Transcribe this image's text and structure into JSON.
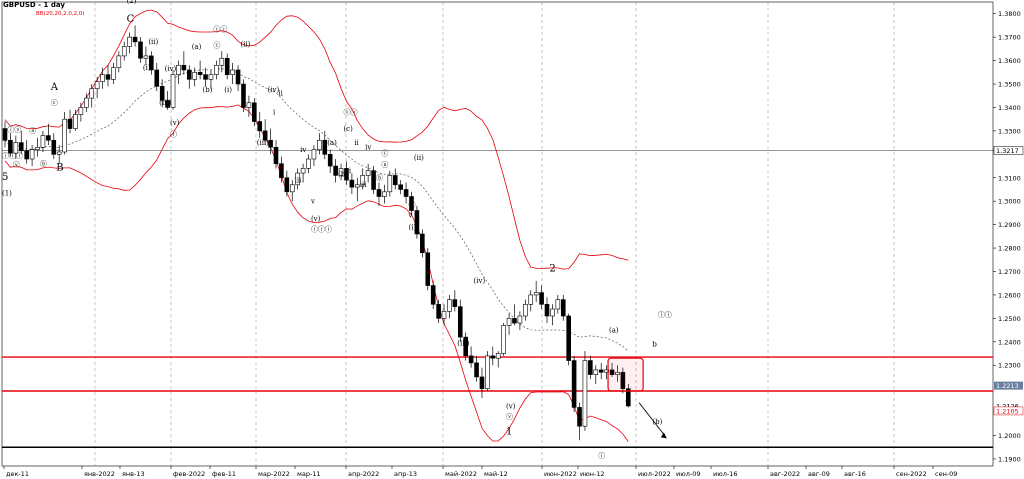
{
  "header": {
    "symbol_title": "GBPUSD - 1 day",
    "indicator": "BB(20,20,2.0,2,0)"
  },
  "colors": {
    "bull_candle": "#ffffff",
    "bear_candle": "#000000",
    "bollinger": "#e8000b",
    "ma": "#555555",
    "level_lines": "#e8000b",
    "support_line": "#000000",
    "price_tag": "#6a7fa0",
    "price_tag2": "#e8000b",
    "grid": "#888888",
    "wave_labels": "#000000"
  },
  "chart_data": {
    "type": "candlestick",
    "title": "GBPUSD - 1 day",
    "indicator": "BB(20,20,2.0,2,0)",
    "ylim": [
      1.187,
      1.385
    ],
    "y_ticks": [
      "1.3800",
      "1.3700",
      "1.3600",
      "1.3500",
      "1.3400",
      "1.3300",
      "1.3217",
      "1.3100",
      "1.3000",
      "1.2900",
      "1.2800",
      "1.2700",
      "1.2600",
      "1.2500",
      "1.2400",
      "1.2300",
      "1.2213",
      "1.2126",
      "1.2105",
      "1.2000",
      "1.1900"
    ],
    "x_ticks": [
      "дек-11",
      "янв-2022",
      "янв-13",
      "фев-2022",
      "фев-11",
      "мар-2022",
      "мар-11",
      "апр-2022",
      "апр-13",
      "май-2022",
      "май-12",
      "июн-2022",
      "июн-12",
      "июл-2022",
      "июл-09",
      "июл-16",
      "авг-2022",
      "авг-09",
      "авг-16",
      "сен-2022",
      "сен-09"
    ],
    "price_tags": [
      {
        "label": "1.2213",
        "value": 1.2213,
        "style": "current"
      },
      {
        "label": "1.2126",
        "value": 1.2126,
        "style": "plain"
      },
      {
        "label": "1.2105",
        "value": 1.2105,
        "style": "red"
      }
    ],
    "horizontal_levels": [
      {
        "value": 1.3217,
        "color": "#555555",
        "style": "thin"
      },
      {
        "value": 1.2335,
        "color": "#e8000b",
        "style": "thick"
      },
      {
        "value": 1.219,
        "color": "#e8000b",
        "style": "thick"
      },
      {
        "value": 1.195,
        "color": "#000000",
        "style": "thick"
      }
    ],
    "vertical_dashed_dates": [
      "янв-2022",
      "фев-2022",
      "мар-2022",
      "апр-2022",
      "май-2022",
      "июн-2022",
      "июл-2022",
      "авг-2022",
      "сен-2022"
    ],
    "candles": [
      [
        1.331,
        1.334,
        1.323,
        1.326
      ],
      [
        1.326,
        1.329,
        1.319,
        1.3205
      ],
      [
        1.3205,
        1.328,
        1.318,
        1.325
      ],
      [
        1.325,
        1.33,
        1.32,
        1.3215
      ],
      [
        1.3215,
        1.326,
        1.316,
        1.318
      ],
      [
        1.318,
        1.324,
        1.315,
        1.322
      ],
      [
        1.322,
        1.327,
        1.319,
        1.323
      ],
      [
        1.323,
        1.33,
        1.321,
        1.328
      ],
      [
        1.328,
        1.333,
        1.324,
        1.326
      ],
      [
        1.326,
        1.329,
        1.318,
        1.32
      ],
      [
        1.32,
        1.324,
        1.316,
        1.321
      ],
      [
        1.321,
        1.338,
        1.32,
        1.335
      ],
      [
        1.335,
        1.339,
        1.329,
        1.331
      ],
      [
        1.331,
        1.339,
        1.33,
        1.337
      ],
      [
        1.337,
        1.342,
        1.334,
        1.34
      ],
      [
        1.34,
        1.346,
        1.338,
        1.344
      ],
      [
        1.344,
        1.35,
        1.34,
        1.348
      ],
      [
        1.348,
        1.353,
        1.344,
        1.351
      ],
      [
        1.351,
        1.357,
        1.348,
        1.354
      ],
      [
        1.354,
        1.358,
        1.349,
        1.352
      ],
      [
        1.352,
        1.359,
        1.35,
        1.357
      ],
      [
        1.357,
        1.364,
        1.355,
        1.362
      ],
      [
        1.362,
        1.368,
        1.36,
        1.366
      ],
      [
        1.366,
        1.372,
        1.363,
        1.37
      ],
      [
        1.37,
        1.375,
        1.366,
        1.368
      ],
      [
        1.368,
        1.37,
        1.359,
        1.361
      ],
      [
        1.361,
        1.366,
        1.358,
        1.362
      ],
      [
        1.362,
        1.364,
        1.354,
        1.356
      ],
      [
        1.356,
        1.359,
        1.347,
        1.349
      ],
      [
        1.349,
        1.352,
        1.34,
        1.343
      ],
      [
        1.343,
        1.347,
        1.339,
        1.34
      ],
      [
        1.34,
        1.356,
        1.339,
        1.354
      ],
      [
        1.354,
        1.36,
        1.35,
        1.358
      ],
      [
        1.358,
        1.364,
        1.354,
        1.356
      ],
      [
        1.356,
        1.358,
        1.348,
        1.352
      ],
      [
        1.352,
        1.357,
        1.349,
        1.355
      ],
      [
        1.355,
        1.36,
        1.352,
        1.354
      ],
      [
        1.354,
        1.357,
        1.349,
        1.352
      ],
      [
        1.352,
        1.356,
        1.348,
        1.354
      ],
      [
        1.354,
        1.36,
        1.352,
        1.358
      ],
      [
        1.358,
        1.364,
        1.355,
        1.361
      ],
      [
        1.361,
        1.363,
        1.352,
        1.354
      ],
      [
        1.354,
        1.359,
        1.35,
        1.356
      ],
      [
        1.356,
        1.358,
        1.347,
        1.35
      ],
      [
        1.35,
        1.352,
        1.338,
        1.34
      ],
      [
        1.34,
        1.345,
        1.336,
        1.342
      ],
      [
        1.342,
        1.344,
        1.332,
        1.334
      ],
      [
        1.334,
        1.338,
        1.327,
        1.33
      ],
      [
        1.33,
        1.335,
        1.324,
        1.326
      ],
      [
        1.326,
        1.331,
        1.32,
        1.323
      ],
      [
        1.323,
        1.326,
        1.314,
        1.316
      ],
      [
        1.316,
        1.319,
        1.308,
        1.31
      ],
      [
        1.31,
        1.313,
        1.302,
        1.304
      ],
      [
        1.304,
        1.309,
        1.3,
        1.307
      ],
      [
        1.307,
        1.314,
        1.305,
        1.312
      ],
      [
        1.312,
        1.316,
        1.308,
        1.314
      ],
      [
        1.314,
        1.32,
        1.312,
        1.318
      ],
      [
        1.318,
        1.324,
        1.315,
        1.322
      ],
      [
        1.322,
        1.329,
        1.32,
        1.326
      ],
      [
        1.326,
        1.33,
        1.318,
        1.32
      ],
      [
        1.32,
        1.322,
        1.312,
        1.315
      ],
      [
        1.315,
        1.318,
        1.308,
        1.311
      ],
      [
        1.311,
        1.316,
        1.309,
        1.314
      ],
      [
        1.314,
        1.317,
        1.307,
        1.309
      ],
      [
        1.309,
        1.312,
        1.303,
        1.306
      ],
      [
        1.306,
        1.31,
        1.3,
        1.307
      ],
      [
        1.307,
        1.314,
        1.305,
        1.311
      ],
      [
        1.311,
        1.316,
        1.308,
        1.313
      ],
      [
        1.313,
        1.315,
        1.303,
        1.305
      ],
      [
        1.305,
        1.308,
        1.298,
        1.302
      ],
      [
        1.302,
        1.307,
        1.299,
        1.304
      ],
      [
        1.304,
        1.313,
        1.302,
        1.311
      ],
      [
        1.311,
        1.314,
        1.305,
        1.307
      ],
      [
        1.307,
        1.309,
        1.303,
        1.305
      ],
      [
        1.305,
        1.308,
        1.299,
        1.302
      ],
      [
        1.302,
        1.304,
        1.294,
        1.296
      ],
      [
        1.296,
        1.298,
        1.284,
        1.286
      ],
      [
        1.286,
        1.288,
        1.276,
        1.278
      ],
      [
        1.278,
        1.28,
        1.262,
        1.264
      ],
      [
        1.264,
        1.266,
        1.254,
        1.256
      ],
      [
        1.256,
        1.258,
        1.248,
        1.25
      ],
      [
        1.25,
        1.256,
        1.247,
        1.253
      ],
      [
        1.253,
        1.26,
        1.25,
        1.258
      ],
      [
        1.258,
        1.262,
        1.253,
        1.255
      ],
      [
        1.255,
        1.258,
        1.24,
        1.242
      ],
      [
        1.242,
        1.244,
        1.232,
        1.234
      ],
      [
        1.234,
        1.238,
        1.229,
        1.231
      ],
      [
        1.231,
        1.234,
        1.223,
        1.225
      ],
      [
        1.225,
        1.229,
        1.216,
        1.22
      ],
      [
        1.22,
        1.236,
        1.219,
        1.234
      ],
      [
        1.234,
        1.238,
        1.23,
        1.233
      ],
      [
        1.233,
        1.236,
        1.229,
        1.235
      ],
      [
        1.235,
        1.248,
        1.234,
        1.247
      ],
      [
        1.247,
        1.252,
        1.243,
        1.25
      ],
      [
        1.25,
        1.256,
        1.247,
        1.248
      ],
      [
        1.248,
        1.253,
        1.245,
        1.251
      ],
      [
        1.251,
        1.258,
        1.249,
        1.256
      ],
      [
        1.256,
        1.262,
        1.253,
        1.26
      ],
      [
        1.26,
        1.266,
        1.257,
        1.261
      ],
      [
        1.261,
        1.264,
        1.254,
        1.256
      ],
      [
        1.256,
        1.259,
        1.248,
        1.251
      ],
      [
        1.251,
        1.256,
        1.247,
        1.254
      ],
      [
        1.254,
        1.26,
        1.252,
        1.258
      ],
      [
        1.258,
        1.26,
        1.249,
        1.251
      ],
      [
        1.251,
        1.252,
        1.23,
        1.232
      ],
      [
        1.232,
        1.234,
        1.21,
        1.212
      ],
      [
        1.212,
        1.214,
        1.198,
        1.204
      ],
      [
        1.204,
        1.236,
        1.202,
        1.232
      ],
      [
        1.232,
        1.234,
        1.224,
        1.226
      ],
      [
        1.226,
        1.23,
        1.222,
        1.228
      ],
      [
        1.228,
        1.231,
        1.224,
        1.227
      ],
      [
        1.227,
        1.23,
        1.224,
        1.228
      ],
      [
        1.228,
        1.231,
        1.225,
        1.226
      ],
      [
        1.226,
        1.23,
        1.223,
        1.227
      ],
      [
        1.227,
        1.229,
        1.218,
        1.22
      ],
      [
        1.22,
        1.222,
        1.212,
        1.2126
      ]
    ],
    "wave_labels": [
      {
        "text": "5",
        "x": 0,
        "y": 1.309,
        "style": "plain"
      },
      {
        "text": "(1)",
        "x": 0,
        "y": 1.3025,
        "style": "plain"
      },
      {
        "text": "(2)",
        "x": 23,
        "y": 1.3845,
        "style": "plain"
      },
      {
        "text": "C",
        "x": 23,
        "y": 1.3765,
        "style": "plain"
      },
      {
        "text": "A",
        "x": 9,
        "y": 1.3475,
        "style": "plain"
      },
      {
        "text": "B",
        "x": 10,
        "y": 1.313,
        "style": "plain"
      },
      {
        "text": "ⓒ",
        "x": 9,
        "y": 1.341,
        "style": "plain"
      },
      {
        "text": "ⓑ",
        "x": 7,
        "y": 1.315,
        "style": "plain"
      },
      {
        "text": "ⓐ",
        "x": 5,
        "y": 1.329,
        "style": "plain"
      },
      {
        "text": "ⓥ",
        "x": 2,
        "y": 1.3145,
        "style": "plain"
      },
      {
        "text": "ⓘⓥ",
        "x": 1,
        "y": 1.3295,
        "style": "plain"
      },
      {
        "text": "ⓘⓘⓘ",
        "x": 0,
        "y": 1.3185,
        "style": "plain"
      },
      {
        "text": "(ii)",
        "x": 27,
        "y": 1.367,
        "style": "plain"
      },
      {
        "text": "(i)",
        "x": 26,
        "y": 1.356,
        "style": "plain"
      },
      {
        "text": "(iii)",
        "x": 29,
        "y": 1.341,
        "style": "plain"
      },
      {
        "text": "(iv)",
        "x": 30,
        "y": 1.3555,
        "style": "plain"
      },
      {
        "text": "(v)",
        "x": 31,
        "y": 1.3325,
        "style": "plain"
      },
      {
        "text": "ⓘ",
        "x": 31,
        "y": 1.3275,
        "style": "plain"
      },
      {
        "text": "(a)",
        "x": 35,
        "y": 1.365,
        "style": "plain"
      },
      {
        "text": "ⓒ",
        "x": 39,
        "y": 1.3655,
        "style": "plain"
      },
      {
        "text": "ⓘⓘ",
        "x": 39,
        "y": 1.3725,
        "style": "plain"
      },
      {
        "text": "(b)",
        "x": 37,
        "y": 1.3465,
        "style": "plain"
      },
      {
        "text": "(i)",
        "x": 41,
        "y": 1.3465,
        "style": "plain"
      },
      {
        "text": "(ii)",
        "x": 44,
        "y": 1.366,
        "style": "plain"
      },
      {
        "text": "(iv)",
        "x": 49,
        "y": 1.3465,
        "style": "plain"
      },
      {
        "text": "ii",
        "x": 51,
        "y": 1.345,
        "style": "plain"
      },
      {
        "text": "i",
        "x": 50,
        "y": 1.337,
        "style": "plain"
      },
      {
        "text": "(iii)",
        "x": 47,
        "y": 1.324,
        "style": "plain"
      },
      {
        "text": "iv",
        "x": 55,
        "y": 1.321,
        "style": "plain"
      },
      {
        "text": "iii",
        "x": 54,
        "y": 1.308,
        "style": "plain"
      },
      {
        "text": "v",
        "x": 57,
        "y": 1.299,
        "style": "plain"
      },
      {
        "text": "(v)",
        "x": 57,
        "y": 1.2915,
        "style": "plain"
      },
      {
        "text": "ⓘⓘⓘ",
        "x": 57,
        "y": 1.287,
        "style": "plain"
      },
      {
        "text": "(a)",
        "x": 60,
        "y": 1.324,
        "style": "plain"
      },
      {
        "text": "(b)",
        "x": 62,
        "y": 1.3105,
        "style": "plain"
      },
      {
        "text": "(c)",
        "x": 63,
        "y": 1.33,
        "style": "plain"
      },
      {
        "text": "ⓘⓥ",
        "x": 63,
        "y": 1.337,
        "style": "plain"
      },
      {
        "text": "ii",
        "x": 65,
        "y": 1.324,
        "style": "plain"
      },
      {
        "text": "i",
        "x": 64,
        "y": 1.312,
        "style": "plain"
      },
      {
        "text": "iv",
        "x": 67,
        "y": 1.322,
        "style": "plain"
      },
      {
        "text": "iii",
        "x": 66,
        "y": 1.306,
        "style": "plain"
      },
      {
        "text": "ⓒ",
        "x": 70,
        "y": 1.3195,
        "style": "plain"
      },
      {
        "text": "ⓑ",
        "x": 69,
        "y": 1.309,
        "style": "plain"
      },
      {
        "text": "ⓐ",
        "x": 70,
        "y": 1.3145,
        "style": "plain"
      },
      {
        "text": "(ii)",
        "x": 76,
        "y": 1.3175,
        "style": "plain"
      },
      {
        "text": "Ⓒ",
        "x": 75,
        "y": 1.2975,
        "style": "plain"
      },
      {
        "text": "v",
        "x": 75,
        "y": 1.293,
        "style": "plain"
      },
      {
        "text": "(i)",
        "x": 75,
        "y": 1.288,
        "style": "plain"
      },
      {
        "text": "(iv)",
        "x": 87,
        "y": 1.265,
        "style": "plain"
      },
      {
        "text": "(iii)",
        "x": 84,
        "y": 1.2385,
        "style": "plain"
      },
      {
        "text": "(v)",
        "x": 93,
        "y": 1.2115,
        "style": "plain"
      },
      {
        "text": "ⓥ",
        "x": 93,
        "y": 1.207,
        "style": "plain"
      },
      {
        "text": "1",
        "x": 93,
        "y": 1.2005,
        "style": "plain"
      },
      {
        "text": "2",
        "x": 101,
        "y": 1.27,
        "style": "plain"
      },
      {
        "text": "(a)",
        "x": 112,
        "y": 1.244,
        "style": "plain"
      },
      {
        "text": "a",
        "x": 115,
        "y": 1.214,
        "style": "plain"
      },
      {
        "text": "ⓘⓘ",
        "x": 121,
        "y": 1.2505,
        "style": "plain"
      },
      {
        "text": "b",
        "x": 120,
        "y": 1.238,
        "style": "plain"
      },
      {
        "text": "(b)",
        "x": 120,
        "y": 1.205,
        "style": "plain"
      },
      {
        "text": "ⓘ",
        "x": 110,
        "y": 1.1905,
        "style": "plain"
      }
    ]
  }
}
